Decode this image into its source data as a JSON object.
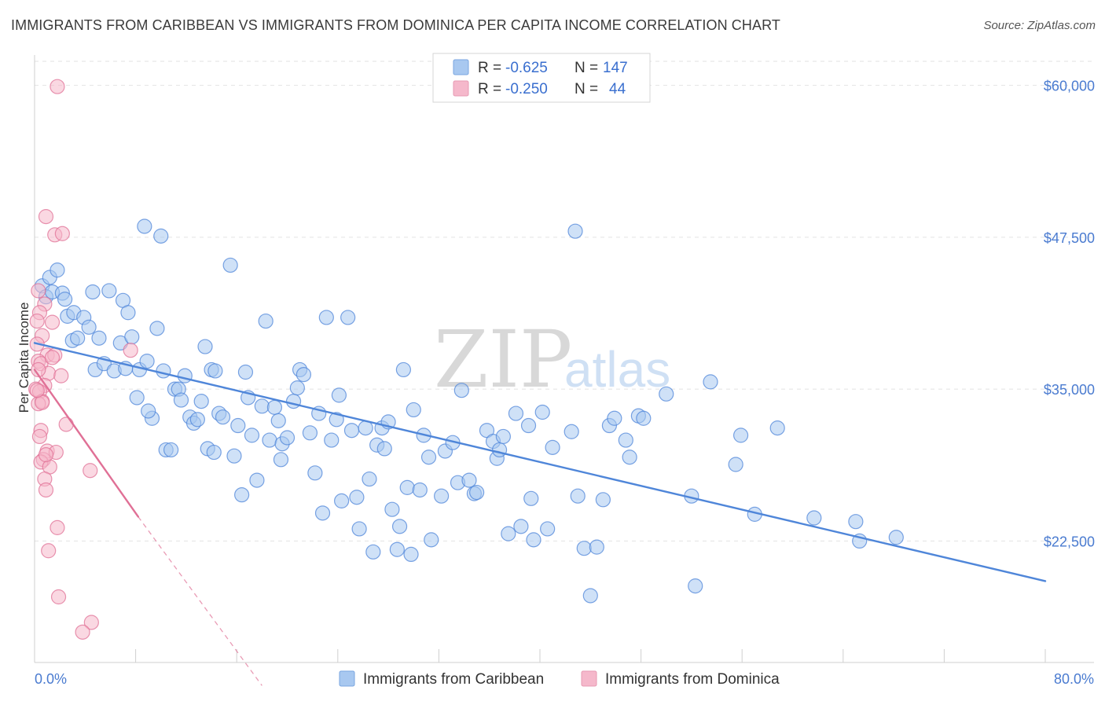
{
  "header": {
    "title": "IMMIGRANTS FROM CARIBBEAN VS IMMIGRANTS FROM DOMINICA PER CAPITA INCOME CORRELATION CHART",
    "source": "Source: ZipAtlas.com"
  },
  "watermark": {
    "zip": "ZIP",
    "atlas": "atlas"
  },
  "legend": {
    "r_label": "R =",
    "n_label": "N =",
    "entries": [
      {
        "r": "-0.625",
        "n": "147",
        "color": "#a8c8f0"
      },
      {
        "r": "-0.250",
        "n": "44",
        "color": "#f5b8cb"
      }
    ]
  },
  "chart_data": {
    "type": "scatter",
    "title": "IMMIGRANTS FROM CARIBBEAN VS IMMIGRANTS FROM DOMINICA PER CAPITA INCOME CORRELATION CHART",
    "xlabel": "",
    "ylabel": "Per Capita Income",
    "xlim": [
      0,
      80
    ],
    "ylim": [
      12500,
      62500
    ],
    "x_tick_labels": [
      "0.0%",
      "80.0%"
    ],
    "y_ticks": [
      22500,
      35000,
      47500,
      60000
    ],
    "y_tick_labels": [
      "$22,500",
      "$35,000",
      "$47,500",
      "$60,000"
    ],
    "series": [
      {
        "name": "Immigrants from Caribbean",
        "color": "#4f86d9",
        "fill": "#a8c8f0",
        "trend": {
          "x": [
            0,
            80
          ],
          "y": [
            38800,
            19200
          ],
          "dashed_to": null
        },
        "points": [
          [
            0.6,
            43.5
          ],
          [
            0.9,
            42.6
          ],
          [
            1.2,
            44.2
          ],
          [
            1.4,
            43.0
          ],
          [
            1.8,
            44.8
          ],
          [
            2.2,
            42.9
          ],
          [
            2.4,
            42.4
          ],
          [
            2.6,
            41.0
          ],
          [
            3.0,
            39.0
          ],
          [
            3.1,
            41.3
          ],
          [
            3.4,
            39.2
          ],
          [
            3.9,
            40.9
          ],
          [
            4.3,
            40.1
          ],
          [
            4.6,
            43.0
          ],
          [
            4.8,
            36.6
          ],
          [
            5.1,
            39.2
          ],
          [
            5.5,
            37.1
          ],
          [
            5.9,
            43.1
          ],
          [
            6.3,
            36.5
          ],
          [
            6.8,
            38.8
          ],
          [
            7.0,
            42.3
          ],
          [
            7.2,
            36.7
          ],
          [
            7.4,
            41.3
          ],
          [
            7.7,
            39.3
          ],
          [
            8.1,
            34.3
          ],
          [
            8.3,
            36.6
          ],
          [
            8.7,
            48.4
          ],
          [
            8.9,
            37.3
          ],
          [
            9.3,
            32.6
          ],
          [
            9.7,
            40.0
          ],
          [
            10.0,
            47.6
          ],
          [
            10.2,
            36.5
          ],
          [
            10.4,
            30.0
          ],
          [
            10.8,
            30.0
          ],
          [
            11.1,
            35.0
          ],
          [
            11.4,
            35.0
          ],
          [
            11.6,
            34.1
          ],
          [
            11.9,
            36.1
          ],
          [
            12.3,
            32.7
          ],
          [
            12.6,
            32.2
          ],
          [
            12.9,
            32.5
          ],
          [
            13.2,
            34.0
          ],
          [
            13.5,
            38.5
          ],
          [
            13.7,
            30.1
          ],
          [
            14.0,
            36.6
          ],
          [
            14.3,
            36.5
          ],
          [
            14.6,
            33.0
          ],
          [
            14.9,
            32.7
          ],
          [
            15.5,
            45.2
          ],
          [
            15.8,
            29.5
          ],
          [
            16.1,
            32.0
          ],
          [
            16.4,
            26.3
          ],
          [
            16.7,
            36.4
          ],
          [
            16.9,
            34.3
          ],
          [
            17.2,
            31.2
          ],
          [
            17.6,
            27.5
          ],
          [
            18.0,
            33.6
          ],
          [
            18.3,
            40.6
          ],
          [
            18.6,
            30.8
          ],
          [
            19.0,
            33.5
          ],
          [
            19.3,
            32.4
          ],
          [
            19.6,
            30.5
          ],
          [
            20.0,
            31.0
          ],
          [
            20.5,
            34.0
          ],
          [
            20.8,
            35.1
          ],
          [
            21.0,
            36.6
          ],
          [
            21.3,
            36.2
          ],
          [
            21.8,
            31.4
          ],
          [
            22.2,
            28.1
          ],
          [
            22.5,
            33.0
          ],
          [
            22.8,
            24.8
          ],
          [
            23.1,
            40.9
          ],
          [
            23.5,
            30.8
          ],
          [
            23.9,
            32.5
          ],
          [
            24.1,
            34.5
          ],
          [
            24.3,
            25.8
          ],
          [
            24.8,
            40.9
          ],
          [
            25.1,
            31.6
          ],
          [
            25.5,
            26.1
          ],
          [
            25.7,
            23.5
          ],
          [
            26.2,
            31.8
          ],
          [
            26.5,
            27.6
          ],
          [
            26.8,
            21.6
          ],
          [
            27.1,
            30.4
          ],
          [
            27.5,
            31.8
          ],
          [
            27.7,
            30.1
          ],
          [
            28.0,
            32.3
          ],
          [
            28.3,
            25.1
          ],
          [
            28.7,
            21.8
          ],
          [
            28.9,
            23.7
          ],
          [
            29.2,
            36.6
          ],
          [
            29.5,
            26.9
          ],
          [
            30.0,
            33.3
          ],
          [
            30.5,
            26.7
          ],
          [
            30.8,
            31.2
          ],
          [
            31.2,
            29.4
          ],
          [
            31.4,
            22.6
          ],
          [
            32.2,
            26.2
          ],
          [
            32.5,
            29.9
          ],
          [
            33.1,
            30.6
          ],
          [
            33.5,
            27.3
          ],
          [
            33.8,
            34.9
          ],
          [
            34.4,
            27.5
          ],
          [
            34.8,
            26.4
          ],
          [
            35.0,
            26.5
          ],
          [
            35.8,
            31.6
          ],
          [
            36.3,
            30.7
          ],
          [
            36.6,
            29.3
          ],
          [
            36.8,
            30.0
          ],
          [
            37.1,
            31.1
          ],
          [
            37.5,
            23.1
          ],
          [
            38.1,
            33.0
          ],
          [
            38.5,
            23.7
          ],
          [
            39.1,
            32.0
          ],
          [
            39.5,
            22.6
          ],
          [
            40.2,
            33.1
          ],
          [
            40.6,
            23.5
          ],
          [
            41.0,
            30.2
          ],
          [
            42.5,
            31.5
          ],
          [
            42.8,
            48.0
          ],
          [
            43.0,
            26.2
          ],
          [
            43.5,
            21.9
          ],
          [
            44.0,
            18.0
          ],
          [
            45.0,
            25.9
          ],
          [
            45.5,
            32.0
          ],
          [
            45.9,
            32.6
          ],
          [
            46.8,
            30.8
          ],
          [
            47.1,
            29.4
          ],
          [
            47.8,
            32.8
          ],
          [
            48.2,
            32.6
          ],
          [
            50.0,
            34.6
          ],
          [
            52.0,
            26.2
          ],
          [
            52.3,
            18.8
          ],
          [
            53.5,
            35.6
          ],
          [
            55.5,
            28.8
          ],
          [
            55.9,
            31.2
          ],
          [
            57.0,
            24.7
          ],
          [
            58.8,
            31.8
          ],
          [
            61.7,
            24.4
          ],
          [
            65.0,
            24.1
          ],
          [
            65.3,
            22.5
          ],
          [
            68.2,
            22.8
          ],
          [
            44.5,
            22.0
          ],
          [
            39.3,
            26.0
          ],
          [
            29.8,
            21.4
          ],
          [
            19.5,
            29.2
          ],
          [
            14.2,
            29.8
          ],
          [
            9.0,
            33.2
          ]
        ]
      },
      {
        "name": "Immigrants from Dominica",
        "color": "#e07096",
        "fill": "#f5b8cb",
        "trend": {
          "x": [
            0,
            8.2
          ],
          "y": [
            36600,
            24500
          ],
          "dashed_to": [
            18.0,
            10600
          ]
        },
        "points": [
          [
            1.8,
            59.9
          ],
          [
            0.9,
            49.2
          ],
          [
            1.6,
            47.7
          ],
          [
            2.2,
            47.8
          ],
          [
            0.3,
            43.1
          ],
          [
            0.8,
            42.0
          ],
          [
            0.4,
            41.3
          ],
          [
            0.2,
            40.6
          ],
          [
            1.4,
            40.5
          ],
          [
            0.6,
            39.4
          ],
          [
            0.2,
            38.7
          ],
          [
            1.0,
            37.8
          ],
          [
            1.6,
            37.8
          ],
          [
            0.3,
            37.3
          ],
          [
            0.5,
            37.1
          ],
          [
            1.1,
            36.3
          ],
          [
            2.1,
            36.1
          ],
          [
            0.8,
            35.3
          ],
          [
            0.1,
            35.0
          ],
          [
            0.4,
            34.8
          ],
          [
            0.6,
            34.0
          ],
          [
            0.3,
            33.8
          ],
          [
            2.5,
            32.1
          ],
          [
            0.5,
            31.6
          ],
          [
            0.4,
            31.1
          ],
          [
            1.0,
            29.9
          ],
          [
            1.7,
            29.8
          ],
          [
            0.7,
            29.2
          ],
          [
            0.5,
            29.0
          ],
          [
            1.2,
            28.6
          ],
          [
            4.4,
            28.3
          ],
          [
            0.8,
            27.6
          ],
          [
            0.9,
            26.7
          ],
          [
            1.8,
            23.6
          ],
          [
            1.1,
            21.7
          ],
          [
            1.9,
            17.9
          ],
          [
            4.5,
            15.8
          ],
          [
            3.8,
            15.0
          ],
          [
            7.6,
            38.2
          ],
          [
            0.6,
            33.9
          ],
          [
            0.2,
            34.9
          ],
          [
            1.4,
            37.6
          ],
          [
            0.9,
            29.6
          ],
          [
            0.3,
            36.6
          ]
        ]
      }
    ]
  },
  "bottom_legend": {
    "entries": [
      {
        "label": "Immigrants from Caribbean",
        "color": "#a8c8f0"
      },
      {
        "label": "Immigrants from Dominica",
        "color": "#f5b8cb"
      }
    ]
  }
}
